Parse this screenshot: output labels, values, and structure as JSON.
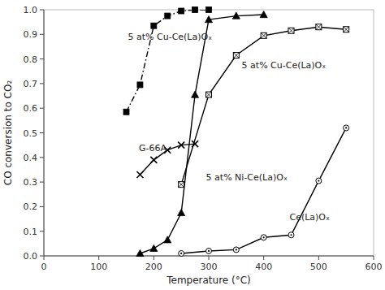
{
  "chart_data": {
    "type": "line",
    "xlabel": "Temperature (°C)",
    "ylabel": "CO conversion to CO₂",
    "xlim": [
      0,
      600
    ],
    "ylim": [
      0,
      1.0
    ],
    "xticks": [
      0,
      100,
      200,
      300,
      400,
      500,
      600
    ],
    "yticks": [
      {
        "value": 0,
        "label": "0.0"
      },
      0.1,
      0.2,
      0.3,
      0.4,
      0.5,
      0.6,
      0.7,
      0.8,
      0.9,
      {
        "value": 1.0,
        "label": "1.0"
      }
    ],
    "grid": false,
    "series": [
      {
        "color": "black",
        "marker": "square",
        "line_style": "dashdot",
        "x": [
          150,
          175,
          200,
          225,
          250,
          275,
          300
        ],
        "values": [
          0.585,
          0.695,
          0.935,
          0.975,
          0.995,
          1.0,
          1.0
        ]
      },
      {
        "color": "black",
        "marker": "square-cross",
        "line_style": "solid",
        "x": [
          250,
          300,
          350,
          400,
          450,
          500,
          550
        ],
        "values": [
          0.29,
          0.655,
          0.815,
          0.895,
          0.915,
          0.93,
          0.92
        ]
      },
      {
        "color": "black",
        "marker": "x",
        "line_style": "solid",
        "x": [
          175,
          200,
          225,
          250,
          275
        ],
        "values": [
          0.33,
          0.39,
          0.43,
          0.45,
          0.455
        ]
      },
      {
        "color": "black",
        "marker": "triangle",
        "line_style": "solid",
        "x": [
          175,
          200,
          225,
          250,
          275,
          300,
          350,
          400
        ],
        "values": [
          0.01,
          0.03,
          0.065,
          0.175,
          0.655,
          0.96,
          0.975,
          0.98
        ]
      },
      {
        "color": "black",
        "marker": "circle-dot",
        "line_style": "solid",
        "x": [
          250,
          300,
          350,
          400,
          450,
          500,
          550
        ],
        "values": [
          0.01,
          0.02,
          0.025,
          0.075,
          0.085,
          0.305,
          0.52
        ]
      }
    ],
    "annotations": [
      {
        "text": "5 at% Cu-Ce(La)Oₓ",
        "x": 153,
        "y": 0.87
      },
      {
        "text": "5 at% Cu-Ce(La)Oₓ",
        "x": 360,
        "y": 0.755
      },
      {
        "text": "G-66A",
        "x": 173,
        "y": 0.42
      },
      {
        "text": "5 at% Ni-Ce(La)Oₓ",
        "x": 295,
        "y": 0.3
      },
      {
        "text": "Ce(La)Oₓ",
        "x": 447,
        "y": 0.14
      }
    ]
  }
}
